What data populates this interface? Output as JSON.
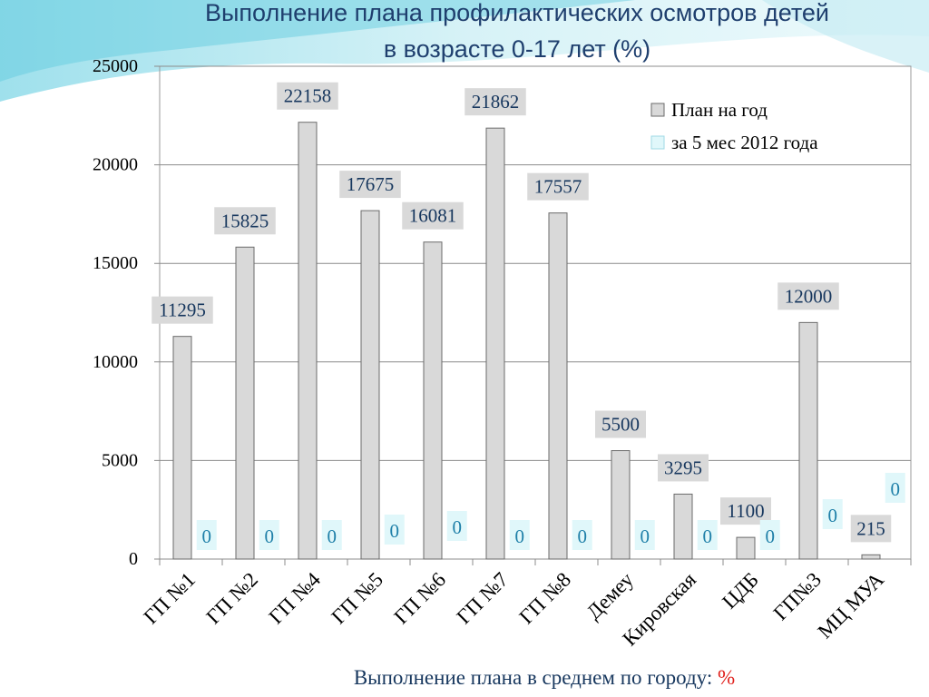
{
  "title_line1": "Выполнение плана профилактических осмотров детей",
  "title_line2": "в возрасте 0-17 лет (%)",
  "footer_text": "Выполнение плана в среднем по городу:",
  "footer_value": "%",
  "colors": {
    "plan": "#d9d9d9",
    "done": "#e0f7fa",
    "label_text": "#17375e",
    "zero_text": "#1e7fa8"
  },
  "chart_data": {
    "type": "bar",
    "categories": [
      "ГП №1",
      "ГП №2",
      "ГП №4",
      "ГП №5",
      "ГП №6",
      "ГП  №7",
      "ГП №8",
      "Демеу",
      "Кировская",
      "ЦДБ",
      "ГП№3",
      "МЦ МУА"
    ],
    "series": [
      {
        "name": "План на год",
        "values": [
          11295,
          15825,
          22158,
          17675,
          16081,
          21862,
          17557,
          5500,
          3295,
          1100,
          12000,
          215
        ],
        "labels": [
          "11295",
          "15825",
          "22158",
          "17675",
          "16081",
          "21862",
          "17557",
          "5500",
          "3295",
          "1100",
          "12000",
          "215"
        ]
      },
      {
        "name": "за 5 мес 2012 года",
        "values": [
          0,
          0,
          0,
          0,
          0,
          0,
          0,
          0,
          0,
          0,
          0,
          0
        ],
        "labels": [
          "0",
          "0",
          "0",
          "0",
          "0",
          "0",
          "0",
          "0",
          "0",
          "0",
          "0",
          "0"
        ]
      }
    ],
    "yticks": [
      "0",
      "5000",
      "10000",
      "15000",
      "20000",
      "25000"
    ],
    "ylim": [
      0,
      25000
    ],
    "grid": true,
    "legend_position": "top-right"
  }
}
